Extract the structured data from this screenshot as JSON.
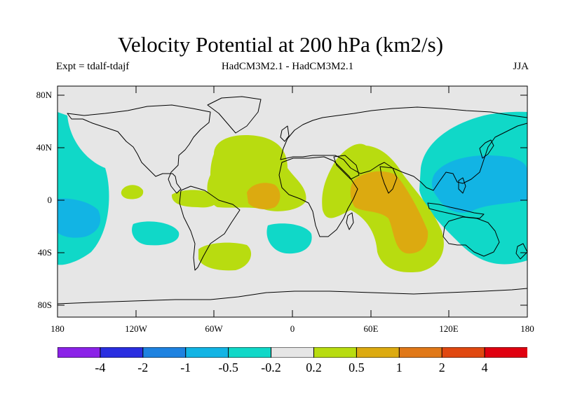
{
  "title": "Velocity Potential at 200 hPa (km2/s)",
  "subtitle_left": "Expt = tdalf-tdajf",
  "subtitle_center": "HadCM3M2.1 - HadCM3M2.1",
  "subtitle_right": "JJA",
  "lat_labels": [
    "80N",
    "40N",
    "0",
    "40S",
    "80S"
  ],
  "lon_labels": [
    "180",
    "120W",
    "60W",
    "0",
    "60E",
    "120E",
    "180"
  ],
  "colorbar": {
    "labels": [
      "-4",
      "-2",
      "-1",
      "-0.5",
      "-0.2",
      "0.2",
      "0.5",
      "1",
      "2",
      "4"
    ],
    "colors": [
      "#8b22e8",
      "#2a2ee0",
      "#1e82e0",
      "#12b4e4",
      "#10d8c8",
      "#e6e6e6",
      "#b8dc10",
      "#dcaa10",
      "#e07818",
      "#e04810",
      "#e00010"
    ]
  },
  "colors": {
    "background_zero": "#e6e6e6",
    "positive_1": "#b8dc10",
    "positive_2": "#dcaa10",
    "negative_1": "#10d8c8",
    "negative_2": "#12b4e4"
  }
}
